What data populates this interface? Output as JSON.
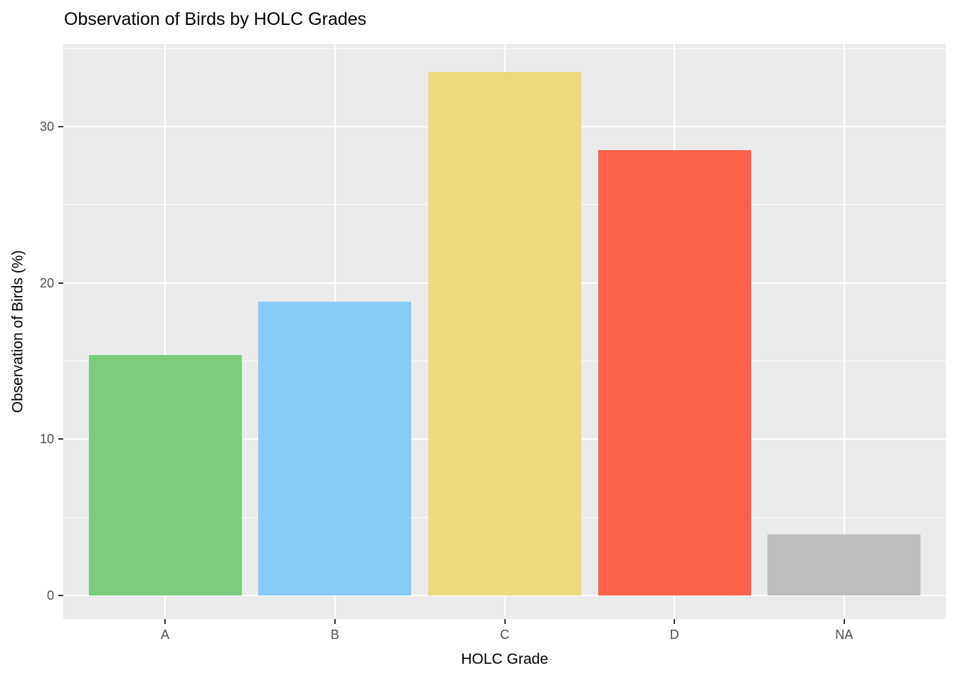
{
  "title": "Observation of Birds by HOLC Grades",
  "chart_data": {
    "type": "bar",
    "title": "Observation of Birds by HOLC Grades",
    "xlabel": "HOLC Grade",
    "ylabel": "Observation of Birds (%)",
    "categories": [
      "A",
      "B",
      "C",
      "D",
      "NA"
    ],
    "values": [
      15.4,
      18.8,
      33.5,
      28.5,
      3.9
    ],
    "bar_colors": [
      "#7BCC7C",
      "#87CBFA",
      "#EBDB7E",
      "#FB6247",
      "#BDBDBD"
    ],
    "y_ticks": [
      0,
      10,
      20,
      30
    ],
    "y_minor_ticks": [
      5,
      15,
      25,
      35
    ],
    "ylim": [
      -1.5,
      35.3
    ],
    "grid": "major and minor horizontal white gridlines, vertical white gridlines at category centers",
    "legend_position": "none",
    "colors": {
      "panel_background": "#EBEBEB",
      "gridline": "#FFFFFF",
      "tick_label": "#4D4D4D",
      "tick_mark": "#333333",
      "title_text": "#000000",
      "page_background": "#FFFFFF"
    }
  }
}
